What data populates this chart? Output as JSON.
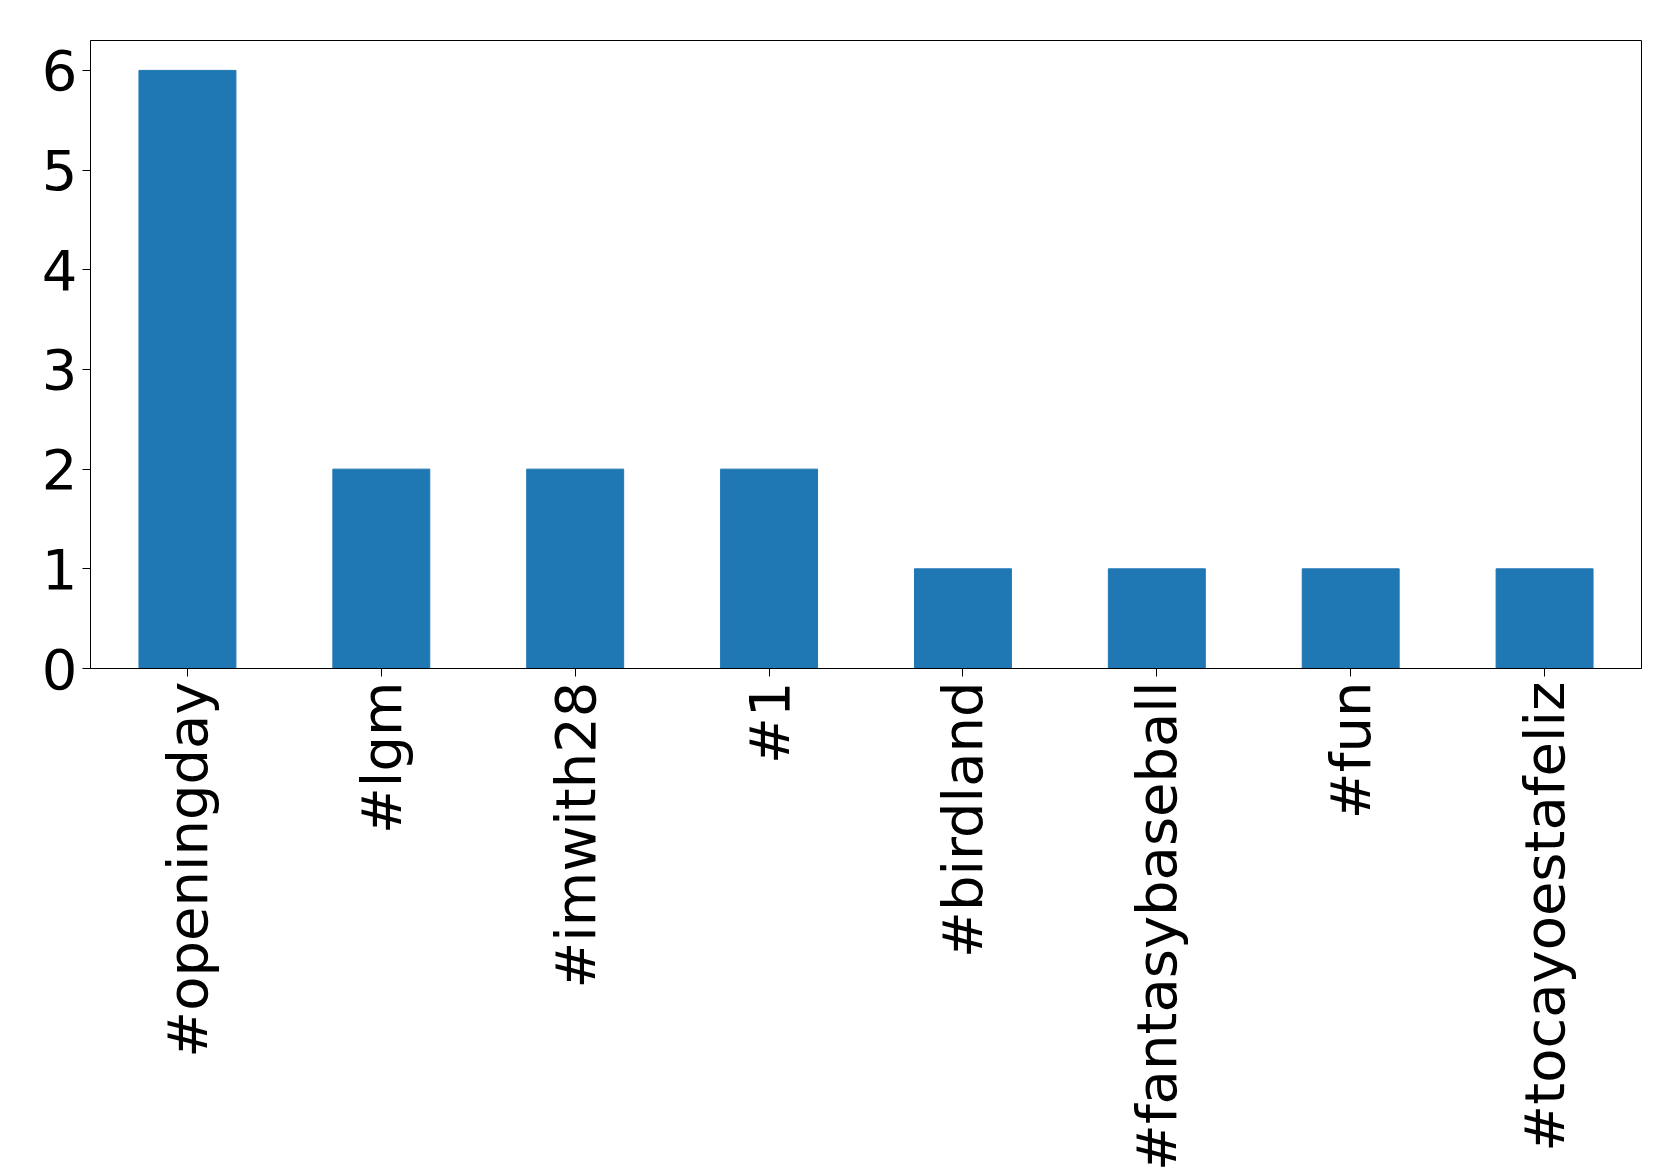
{
  "chart_data": {
    "type": "bar",
    "categories": [
      "#openingday",
      "#lgm",
      "#imwith28",
      "#1",
      "#birdland",
      "#fantasybaseball",
      "#fun",
      "#tocayoestafeliz"
    ],
    "values": [
      6,
      2,
      2,
      2,
      1,
      1,
      1,
      1
    ],
    "color": "#1f77b4",
    "ylim": [
      0,
      6.3
    ],
    "yticks": [
      0,
      1,
      2,
      3,
      4,
      5,
      6
    ],
    "grid": false
  }
}
